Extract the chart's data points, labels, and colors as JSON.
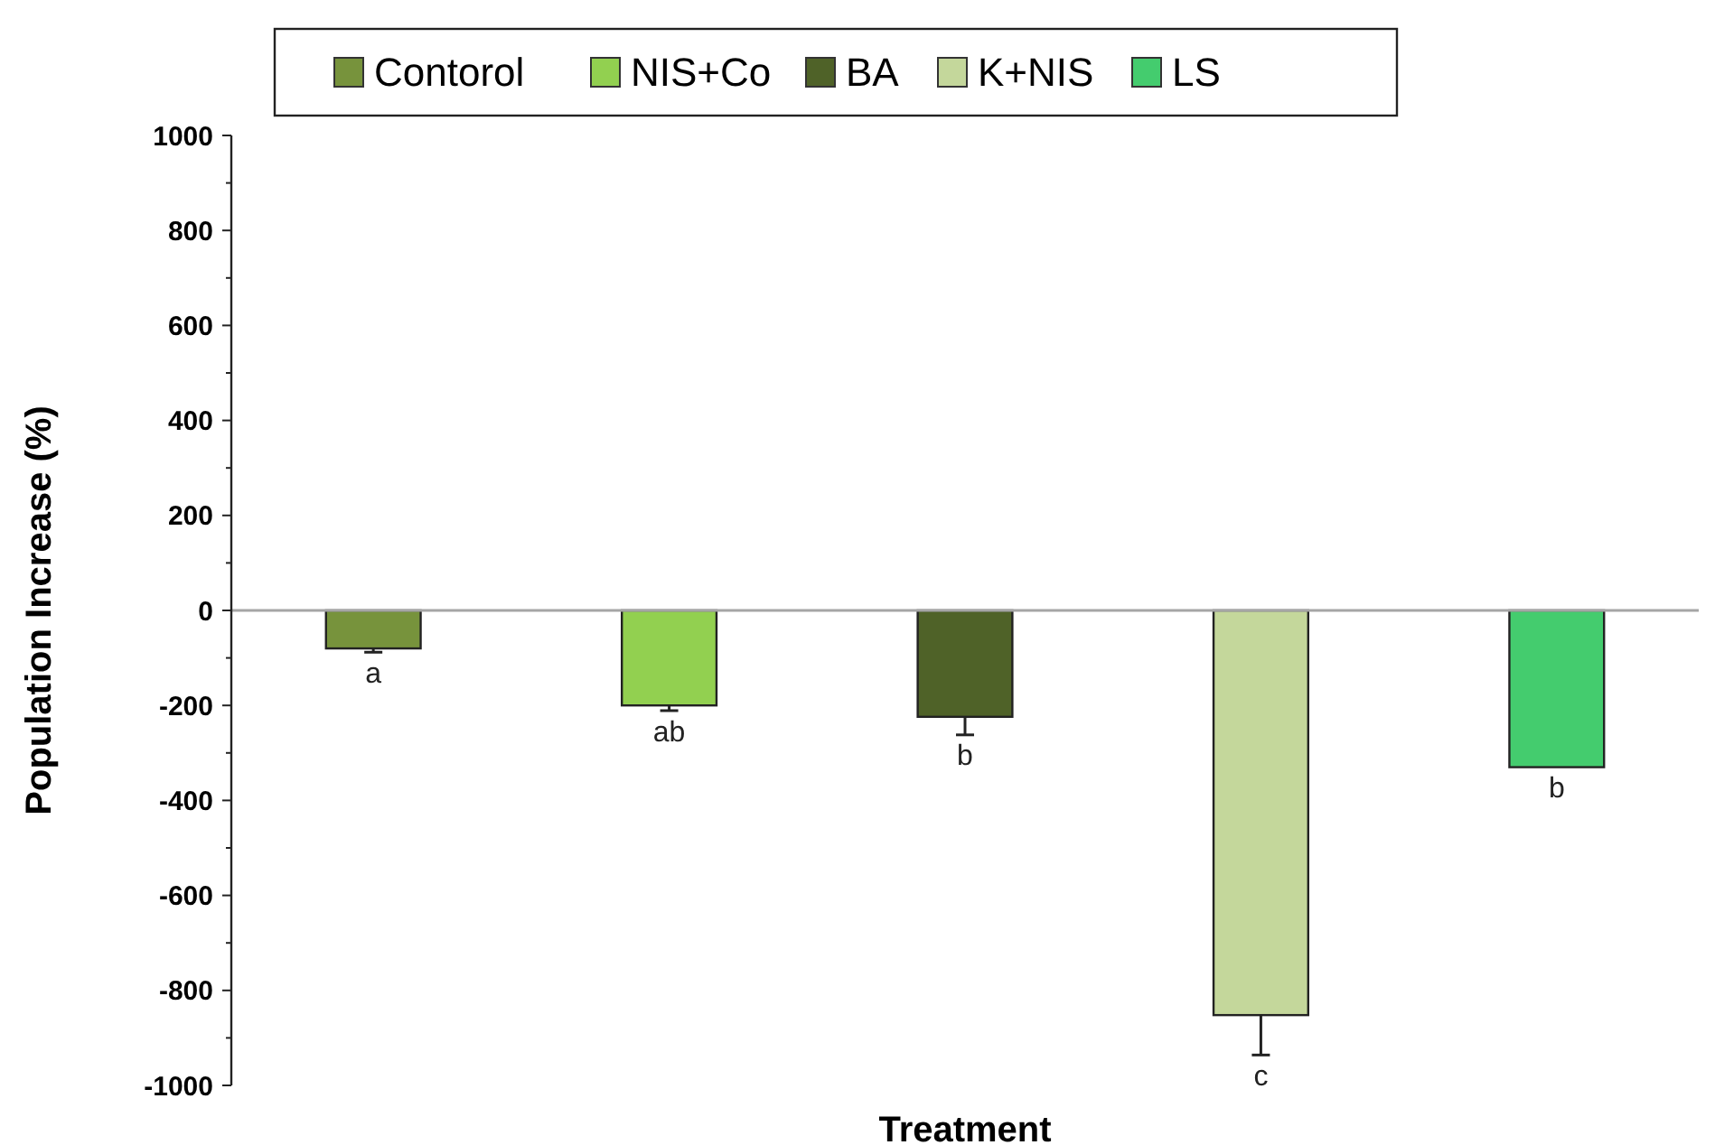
{
  "chart_data": {
    "type": "bar",
    "xlabel": "Treatment",
    "ylabel": "Population Increase (%)",
    "categories": [
      null,
      null,
      null,
      null,
      null
    ],
    "series": [
      {
        "name": "Contorol",
        "color": "#77933c",
        "values": [
          -80,
          null,
          null,
          null,
          null
        ],
        "errors": [
          [
            -88,
            -80
          ],
          null,
          null,
          null,
          null
        ]
      },
      {
        "name": "NIS+Co",
        "color": "#92d050",
        "values": [
          null,
          -200,
          null,
          null,
          null
        ],
        "errors": [
          null,
          [
            -211,
            -200
          ],
          null,
          null,
          null
        ]
      },
      {
        "name": "BA",
        "color": "#4f6228",
        "values": [
          null,
          null,
          -224,
          null,
          null
        ],
        "errors": [
          null,
          null,
          [
            -262,
            -224
          ],
          null,
          null
        ]
      },
      {
        "name": "K+NIS",
        "color": "#c4d79b",
        "values": [
          null,
          null,
          null,
          -852,
          null
        ],
        "errors": [
          null,
          null,
          null,
          [
            -936,
            -852
          ],
          null
        ]
      },
      {
        "name": "LS",
        "color": "#44cc6e",
        "values": [
          null,
          null,
          null,
          null,
          -330
        ]
      }
    ],
    "annotations": [
      "a",
      "ab",
      "b",
      "c",
      "b"
    ],
    "ref_lines": [
      {
        "axis": "y",
        "value": 0,
        "color": "#a6a6a6"
      }
    ],
    "ylim": [
      -1000,
      1000
    ],
    "yticks": [
      -1000,
      -800,
      -600,
      -400,
      -200,
      0,
      200,
      400,
      600,
      800,
      1000
    ],
    "legend": "top"
  }
}
